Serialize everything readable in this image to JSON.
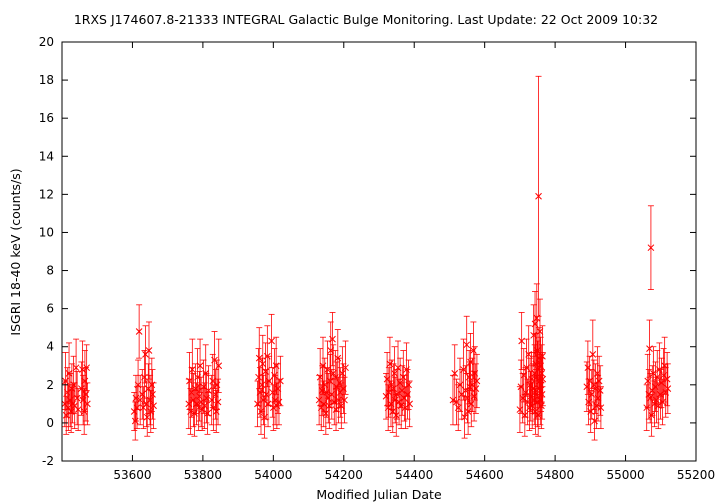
{
  "chart_data": {
    "type": "scatter",
    "title": "1RXS J174607.8-21333   INTEGRAL Galactic Bulge Monitoring.  Last Update: 22 Oct 2009 10:32",
    "xlabel": "Modified Julian Date",
    "ylabel": "ISGRI 18-40 keV (counts/s)",
    "xlim": [
      53400,
      55200
    ],
    "ylim": [
      -2,
      20
    ],
    "xticks": [
      53600,
      53800,
      54000,
      54200,
      54400,
      54600,
      54800,
      55000,
      55200
    ],
    "yticks": [
      -2,
      0,
      2,
      4,
      6,
      8,
      10,
      12,
      14,
      16,
      18,
      20
    ],
    "grid": false,
    "legend": "none",
    "color": "#ff0000",
    "marker": "x",
    "error_bars": true,
    "points": [
      [
        53408,
        1.0,
        1.2
      ],
      [
        53410,
        2.2,
        1.5
      ],
      [
        53412,
        0.4,
        1.0
      ],
      [
        53415,
        1.6,
        1.3
      ],
      [
        53418,
        0.8,
        1.2
      ],
      [
        53420,
        2.6,
        1.6
      ],
      [
        53423,
        1.2,
        1.4
      ],
      [
        53426,
        0.6,
        1.1
      ],
      [
        53428,
        1.8,
        1.3
      ],
      [
        53430,
        1.0,
        1.0
      ],
      [
        53433,
        2.0,
        1.5
      ],
      [
        53436,
        0.9,
        1.2
      ],
      [
        53440,
        2.9,
        1.5
      ],
      [
        53443,
        1.3,
        1.4
      ],
      [
        53446,
        0.7,
        1.1
      ],
      [
        53455,
        1.8,
        1.4
      ],
      [
        53458,
        2.8,
        1.5
      ],
      [
        53460,
        1.2,
        1.3
      ],
      [
        53463,
        0.6,
        1.2
      ],
      [
        53465,
        2.2,
        1.6
      ],
      [
        53468,
        1.5,
        1.4
      ],
      [
        53470,
        2.9,
        1.2
      ],
      [
        53472,
        1.0,
        1.1
      ],
      [
        53605,
        0.6,
        1.0
      ],
      [
        53608,
        0.1,
        1.0
      ],
      [
        53610,
        1.3,
        1.2
      ],
      [
        53613,
        0.8,
        1.1
      ],
      [
        53616,
        2.0,
        1.3
      ],
      [
        53619,
        4.8,
        1.4
      ],
      [
        53622,
        1.2,
        1.3
      ],
      [
        53628,
        1.5,
        1.3
      ],
      [
        53631,
        0.8,
        1.1
      ],
      [
        53634,
        2.4,
        1.4
      ],
      [
        53637,
        3.6,
        1.5
      ],
      [
        53640,
        1.0,
        1.2
      ],
      [
        53642,
        0.3,
        1.0
      ],
      [
        53645,
        1.8,
        1.3
      ],
      [
        53647,
        3.8,
        1.5
      ],
      [
        53650,
        1.2,
        1.3
      ],
      [
        53652,
        0.6,
        1.1
      ],
      [
        53655,
        2.0,
        1.4
      ],
      [
        53657,
        1.5,
        1.3
      ],
      [
        53660,
        0.9,
        1.2
      ],
      [
        53760,
        1.0,
        1.3
      ],
      [
        53762,
        2.2,
        1.5
      ],
      [
        53765,
        0.6,
        1.2
      ],
      [
        53768,
        1.6,
        1.3
      ],
      [
        53770,
        2.8,
        1.6
      ],
      [
        53773,
        1.2,
        1.4
      ],
      [
        53776,
        0.5,
        1.2
      ],
      [
        53779,
        1.8,
        1.3
      ],
      [
        53782,
        1.0,
        1.1
      ],
      [
        53785,
        2.4,
        1.5
      ],
      [
        53788,
        0.8,
        1.2
      ],
      [
        53790,
        1.4,
        1.3
      ],
      [
        53792,
        3.0,
        1.4
      ],
      [
        53795,
        1.1,
        1.3
      ],
      [
        53798,
        0.7,
        1.1
      ],
      [
        53802,
        1.9,
        1.4
      ],
      [
        53805,
        0.9,
        1.2
      ],
      [
        53808,
        2.6,
        1.5
      ],
      [
        53810,
        1.3,
        1.3
      ],
      [
        53813,
        0.5,
        1.1
      ],
      [
        53816,
        1.7,
        1.3
      ],
      [
        53825,
        1.2,
        1.3
      ],
      [
        53828,
        2.2,
        1.4
      ],
      [
        53830,
        0.8,
        1.2
      ],
      [
        53833,
        3.3,
        1.5
      ],
      [
        53836,
        1.5,
        1.3
      ],
      [
        53838,
        0.6,
        1.1
      ],
      [
        53840,
        2.0,
        1.3
      ],
      [
        53843,
        1.1,
        1.2
      ],
      [
        53845,
        3.0,
        1.4
      ],
      [
        53955,
        1.0,
        1.2
      ],
      [
        53958,
        2.4,
        1.5
      ],
      [
        53960,
        3.4,
        1.6
      ],
      [
        53962,
        1.6,
        1.3
      ],
      [
        53965,
        0.6,
        1.2
      ],
      [
        53968,
        2.0,
        1.4
      ],
      [
        53970,
        3.1,
        1.5
      ],
      [
        53972,
        1.2,
        1.3
      ],
      [
        53975,
        0.3,
        1.1
      ],
      [
        53978,
        2.7,
        1.5
      ],
      [
        53980,
        1.5,
        1.3
      ],
      [
        53983,
        3.5,
        1.6
      ],
      [
        53985,
        1.0,
        1.2
      ],
      [
        53988,
        2.2,
        1.3
      ],
      [
        53995,
        4.3,
        1.4
      ],
      [
        53998,
        1.6,
        1.3
      ],
      [
        54000,
        0.8,
        1.2
      ],
      [
        54003,
        2.5,
        1.4
      ],
      [
        54005,
        1.2,
        1.3
      ],
      [
        54008,
        3.0,
        1.5
      ],
      [
        54010,
        0.9,
        1.2
      ],
      [
        54013,
        1.8,
        1.3
      ],
      [
        54016,
        1.1,
        1.2
      ],
      [
        54020,
        2.2,
        1.3
      ],
      [
        54130,
        1.2,
        1.3
      ],
      [
        54133,
        2.4,
        1.5
      ],
      [
        54136,
        0.8,
        1.2
      ],
      [
        54139,
        1.7,
        1.3
      ],
      [
        54141,
        3.0,
        1.5
      ],
      [
        54143,
        1.0,
        1.2
      ],
      [
        54146,
        2.0,
        1.4
      ],
      [
        54149,
        0.5,
        1.1
      ],
      [
        54151,
        1.6,
        1.3
      ],
      [
        54154,
        2.8,
        1.5
      ],
      [
        54156,
        1.3,
        1.3
      ],
      [
        54159,
        0.9,
        1.2
      ],
      [
        54161,
        2.2,
        1.4
      ],
      [
        54163,
        3.8,
        1.5
      ],
      [
        54166,
        1.5,
        1.3
      ],
      [
        54168,
        4.4,
        1.4
      ],
      [
        54170,
        2.6,
        1.5
      ],
      [
        54173,
        1.1,
        1.2
      ],
      [
        54176,
        2.4,
        1.4
      ],
      [
        54178,
        0.7,
        1.1
      ],
      [
        54180,
        1.9,
        1.3
      ],
      [
        54183,
        3.4,
        1.5
      ],
      [
        54185,
        1.2,
        1.2
      ],
      [
        54188,
        2.1,
        1.3
      ],
      [
        54190,
        1.6,
        1.3
      ],
      [
        54193,
        0.9,
        1.2
      ],
      [
        54196,
        2.6,
        1.4
      ],
      [
        54199,
        1.8,
        1.3
      ],
      [
        54202,
        1.2,
        1.2
      ],
      [
        54205,
        2.9,
        1.4
      ],
      [
        54320,
        1.4,
        1.2
      ],
      [
        54323,
        2.3,
        1.4
      ],
      [
        54326,
        0.8,
        1.2
      ],
      [
        54328,
        1.6,
        1.3
      ],
      [
        54331,
        3.1,
        1.4
      ],
      [
        54334,
        1.0,
        1.2
      ],
      [
        54336,
        2.0,
        1.3
      ],
      [
        54339,
        0.6,
        1.1
      ],
      [
        54341,
        1.8,
        1.3
      ],
      [
        54344,
        2.6,
        1.4
      ],
      [
        54346,
        1.2,
        1.2
      ],
      [
        54349,
        0.4,
        1.1
      ],
      [
        54351,
        1.5,
        1.3
      ],
      [
        54354,
        2.9,
        1.4
      ],
      [
        54357,
        1.1,
        1.2
      ],
      [
        54360,
        2.1,
        1.3
      ],
      [
        54363,
        0.9,
        1.2
      ],
      [
        54366,
        1.7,
        1.3
      ],
      [
        54369,
        2.4,
        1.4
      ],
      [
        54372,
        1.3,
        1.2
      ],
      [
        54375,
        0.8,
        1.1
      ],
      [
        54378,
        2.8,
        1.4
      ],
      [
        54381,
        1.5,
        1.3
      ],
      [
        54384,
        2.0,
        1.3
      ],
      [
        54387,
        1.0,
        1.2
      ],
      [
        54510,
        1.2,
        1.3
      ],
      [
        54515,
        2.6,
        1.5
      ],
      [
        54520,
        1.1,
        1.2
      ],
      [
        54525,
        0.8,
        1.2
      ],
      [
        54530,
        2.0,
        1.4
      ],
      [
        54535,
        1.5,
        1.3
      ],
      [
        54540,
        2.8,
        1.6
      ],
      [
        54543,
        0.3,
        1.1
      ],
      [
        54546,
        1.7,
        1.3
      ],
      [
        54549,
        4.1,
        1.5
      ],
      [
        54551,
        1.3,
        1.3
      ],
      [
        54553,
        0.6,
        1.2
      ],
      [
        54556,
        2.4,
        1.4
      ],
      [
        54558,
        1.9,
        1.3
      ],
      [
        54560,
        3.2,
        1.5
      ],
      [
        54562,
        1.0,
        1.2
      ],
      [
        54565,
        2.0,
        1.4
      ],
      [
        54568,
        3.8,
        1.5
      ],
      [
        54570,
        1.4,
        1.3
      ],
      [
        54572,
        2.6,
        1.4
      ],
      [
        54575,
        1.8,
        1.3
      ],
      [
        54578,
        2.2,
        1.4
      ],
      [
        54700,
        0.7,
        1.2
      ],
      [
        54703,
        1.9,
        1.4
      ],
      [
        54705,
        4.3,
        1.5
      ],
      [
        54708,
        1.3,
        1.3
      ],
      [
        54711,
        2.5,
        1.4
      ],
      [
        54714,
        0.4,
        1.1
      ],
      [
        54716,
        1.6,
        1.3
      ],
      [
        54719,
        2.9,
        1.5
      ],
      [
        54722,
        1.1,
        1.2
      ],
      [
        54725,
        3.6,
        1.5
      ],
      [
        54727,
        0.8,
        1.2
      ],
      [
        54729,
        2.0,
        1.4
      ],
      [
        54731,
        1.4,
        1.3
      ],
      [
        54733,
        2.3,
        1.4
      ],
      [
        54735,
        0.9,
        1.2
      ],
      [
        54737,
        1.8,
        1.3
      ],
      [
        54739,
        4.6,
        1.6
      ],
      [
        54741,
        1.2,
        1.3
      ],
      [
        54742,
        2.6,
        1.5
      ],
      [
        54743,
        5.2,
        1.7
      ],
      [
        54744,
        0.6,
        1.2
      ],
      [
        54745,
        3.1,
        1.6
      ],
      [
        54746,
        1.5,
        1.3
      ],
      [
        54747,
        2.4,
        1.4
      ],
      [
        54748,
        5.5,
        1.8
      ],
      [
        54749,
        3.8,
        1.6
      ],
      [
        54750,
        1.1,
        1.3
      ],
      [
        54751,
        2.8,
        1.5
      ],
      [
        54752,
        0.4,
        1.1
      ],
      [
        54753,
        11.9,
        6.3
      ],
      [
        54754,
        3.4,
        1.6
      ],
      [
        54755,
        1.8,
        1.4
      ],
      [
        54756,
        2.2,
        1.4
      ],
      [
        54757,
        4.8,
        1.7
      ],
      [
        54758,
        1.2,
        1.3
      ],
      [
        54759,
        3.0,
        1.5
      ],
      [
        54760,
        2.0,
        1.4
      ],
      [
        54761,
        0.9,
        1.2
      ],
      [
        54762,
        2.6,
        1.5
      ],
      [
        54763,
        1.5,
        1.3
      ],
      [
        54764,
        3.5,
        1.6
      ],
      [
        54765,
        2.3,
        1.4
      ],
      [
        54890,
        1.9,
        1.3
      ],
      [
        54893,
        2.9,
        1.4
      ],
      [
        54895,
        1.1,
        1.2
      ],
      [
        54898,
        2.2,
        1.3
      ],
      [
        54901,
        0.6,
        1.1
      ],
      [
        54904,
        1.5,
        1.3
      ],
      [
        54907,
        3.6,
        1.8
      ],
      [
        54910,
        2.0,
        1.3
      ],
      [
        54912,
        0.1,
        1.0
      ],
      [
        54915,
        1.8,
        1.3
      ],
      [
        54917,
        0.9,
        1.2
      ],
      [
        54920,
        2.6,
        1.4
      ],
      [
        54922,
        1.3,
        1.2
      ],
      [
        54925,
        2.2,
        1.3
      ],
      [
        54928,
        1.7,
        1.3
      ],
      [
        54930,
        0.8,
        1.1
      ],
      [
        55060,
        0.8,
        1.2
      ],
      [
        55063,
        2.2,
        1.4
      ],
      [
        55066,
        1.5,
        1.3
      ],
      [
        55068,
        3.9,
        1.5
      ],
      [
        55070,
        1.3,
        1.3
      ],
      [
        55072,
        9.2,
        2.2
      ],
      [
        55074,
        0.4,
        1.1
      ],
      [
        55076,
        1.7,
        1.3
      ],
      [
        55079,
        2.6,
        1.4
      ],
      [
        55082,
        1.0,
        1.2
      ],
      [
        55085,
        1.9,
        1.3
      ],
      [
        55088,
        1.2,
        1.2
      ],
      [
        55090,
        2.4,
        1.4
      ],
      [
        55093,
        0.9,
        1.2
      ],
      [
        55096,
        2.8,
        1.4
      ],
      [
        55099,
        1.5,
        1.3
      ],
      [
        55102,
        2.1,
        1.3
      ],
      [
        55105,
        1.1,
        1.2
      ],
      [
        55108,
        2.5,
        1.4
      ],
      [
        55111,
        3.0,
        1.5
      ],
      [
        55114,
        1.6,
        1.3
      ],
      [
        55118,
        2.3,
        1.4
      ],
      [
        55120,
        1.8,
        1.3
      ]
    ]
  }
}
